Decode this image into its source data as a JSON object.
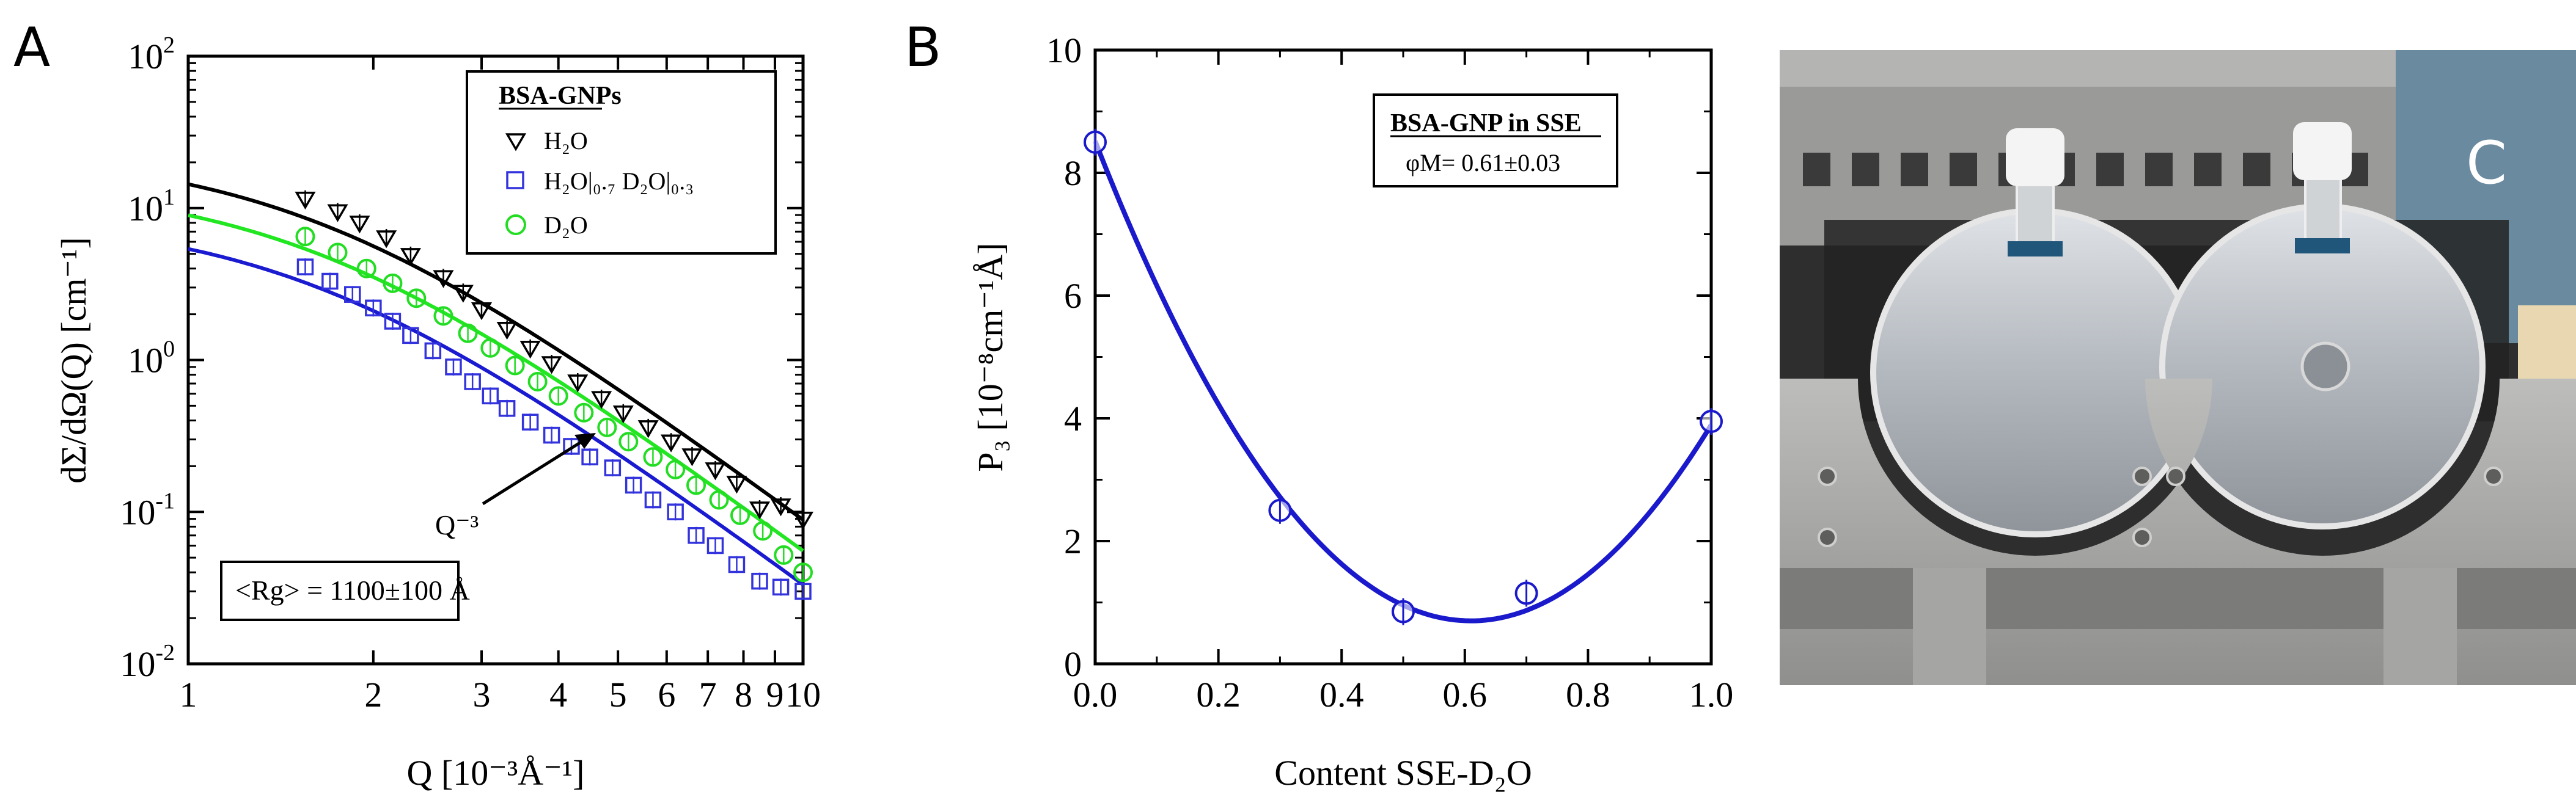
{
  "panel_letters": {
    "a": "A",
    "b": "B",
    "c": "C"
  },
  "chart_data": [
    {
      "type": "scatter",
      "xscale": "log",
      "yscale": "log",
      "xlim": [
        1,
        10
      ],
      "ylim": [
        0.01,
        100
      ],
      "x_ticks": [
        1,
        2,
        3,
        4,
        5,
        6,
        7,
        8,
        9,
        10
      ],
      "x_tick_labels": [
        "1",
        "2",
        "3",
        "4",
        "5",
        "6",
        "7",
        "8",
        "9",
        "10"
      ],
      "y_ticks": [
        0.01,
        0.1,
        1,
        10,
        100
      ],
      "xlabel": "Q [10⁻³Å⁻¹]",
      "ylabel": "dΣ/dΩ(Q) [cm⁻¹]",
      "legend_title": "BSA-GNPs",
      "legend_position": "top-right",
      "series": [
        {
          "name": "H₂O",
          "marker": "triangle-down",
          "color": "#000000",
          "fit_color": "#000000",
          "fit_curve": {
            "I0": 24.0,
            "Rg_relative": 1.05,
            "slope": -3.0
          },
          "x": [
            1.55,
            1.75,
            1.9,
            2.1,
            2.3,
            2.6,
            2.8,
            3.0,
            3.3,
            3.6,
            3.9,
            4.3,
            4.7,
            5.1,
            5.6,
            6.1,
            6.6,
            7.2,
            7.8,
            8.5,
            9.2,
            10.0
          ],
          "y": [
            11.5,
            9.5,
            8.0,
            6.4,
            4.9,
            3.5,
            2.8,
            2.15,
            1.6,
            1.2,
            0.95,
            0.72,
            0.56,
            0.45,
            0.36,
            0.29,
            0.235,
            0.19,
            0.155,
            0.105,
            0.11,
            0.09
          ]
        },
        {
          "name": "H₂O|₀.₇ D₂O|₀.₃",
          "marker": "square",
          "color": "#3333dd",
          "fit_color": "#1a1ad0",
          "fit_curve": {
            "I0": 9.0,
            "Rg_relative": 1.05,
            "slope": -3.0
          },
          "x": [
            1.55,
            1.7,
            1.85,
            2.0,
            2.15,
            2.3,
            2.5,
            2.7,
            2.9,
            3.1,
            3.3,
            3.6,
            3.9,
            4.2,
            4.5,
            4.9,
            5.3,
            5.7,
            6.2,
            6.7,
            7.2,
            7.8,
            8.5,
            9.2,
            10.0
          ],
          "y": [
            4.1,
            3.3,
            2.7,
            2.2,
            1.8,
            1.45,
            1.15,
            0.9,
            0.72,
            0.58,
            0.48,
            0.39,
            0.32,
            0.27,
            0.23,
            0.195,
            0.15,
            0.12,
            0.1,
            0.07,
            0.06,
            0.045,
            0.035,
            0.032,
            0.03
          ]
        },
        {
          "name": "D₂O",
          "marker": "circle",
          "color": "#22dd22",
          "fit_color": "#22e622",
          "fit_curve": {
            "I0": 15.0,
            "Rg_relative": 1.05,
            "slope": -3.0
          },
          "x": [
            1.55,
            1.75,
            1.95,
            2.15,
            2.35,
            2.6,
            2.85,
            3.1,
            3.4,
            3.7,
            4.0,
            4.4,
            4.8,
            5.2,
            5.7,
            6.2,
            6.7,
            7.3,
            7.9,
            8.6,
            9.3,
            10.0
          ],
          "y": [
            6.5,
            5.1,
            4.0,
            3.2,
            2.55,
            1.95,
            1.5,
            1.2,
            0.92,
            0.72,
            0.58,
            0.45,
            0.36,
            0.29,
            0.23,
            0.19,
            0.15,
            0.12,
            0.095,
            0.075,
            0.052,
            0.04
          ]
        }
      ],
      "annotation_slope": "Q⁻³",
      "annotation_rg": "<Rg> = 1100±100 Å"
    },
    {
      "type": "scatter",
      "xlim": [
        0.0,
        1.0
      ],
      "ylim": [
        0,
        10
      ],
      "x_ticks": [
        0.0,
        0.2,
        0.4,
        0.6,
        0.8,
        1.0
      ],
      "x_tick_labels": [
        "0.0",
        "0.2",
        "0.4",
        "0.6",
        "0.8",
        "1.0"
      ],
      "y_ticks": [
        0,
        2,
        4,
        6,
        8,
        10
      ],
      "y_tick_labels": [
        "0",
        "2",
        "4",
        "6",
        "8",
        "10"
      ],
      "xlabel": "Content SSE-D₂O",
      "ylabel": "P₃ [10⁻⁸cm⁻¹Å]",
      "legend_title": "BSA-GNP in SSE",
      "legend_value": "φM= 0.61±0.03",
      "series": [
        {
          "name": "P3",
          "marker": "circle-errorbar",
          "color": "#1a1acc",
          "x": [
            0.0,
            0.3,
            0.5,
            0.7,
            1.0
          ],
          "y": [
            8.5,
            2.5,
            0.85,
            1.15,
            3.95
          ]
        }
      ],
      "fit": {
        "type": "parabola",
        "color": "#1a1acc",
        "a": 21.0,
        "x0": 0.61,
        "c": 0.7
      }
    }
  ],
  "photo": {
    "label": "C",
    "description_free": true,
    "colors": {
      "background": "#2b2b2b",
      "metal": "#a8a8a6",
      "metal_dark": "#6e6e6c",
      "glass": "#c9ccd0",
      "cap": "#f4f4f4"
    }
  }
}
